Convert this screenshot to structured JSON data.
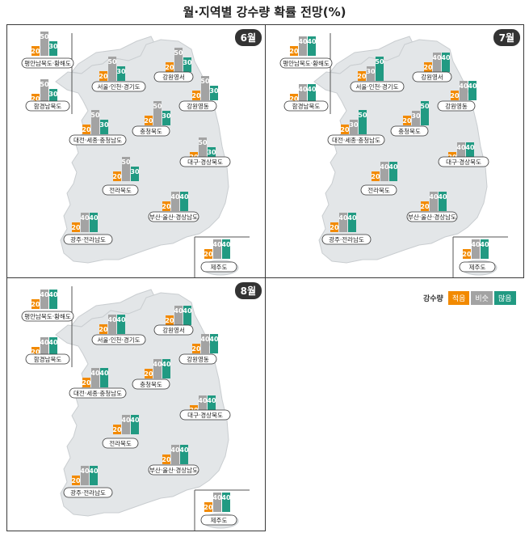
{
  "title": "월·지역별 강수량 확률 전망(%)",
  "colors": {
    "below": "#f28a00",
    "normal": "#a3a3a3",
    "above": "#219a82",
    "map": "#e3e6e8",
    "map_stroke": "#c9cdd0"
  },
  "legend": {
    "title": "강수량",
    "items": [
      "적음",
      "비슷",
      "많음"
    ]
  },
  "chart_data": [
    {
      "type": "bar",
      "month": "6월",
      "series": [
        "적음",
        "비슷",
        "많음"
      ],
      "regions": [
        {
          "name": "평안남북도·황해도",
          "values": [
            20,
            50,
            30
          ]
        },
        {
          "name": "함경남북도",
          "values": [
            20,
            50,
            30
          ]
        },
        {
          "name": "서울·인천·경기도",
          "values": [
            20,
            50,
            30
          ]
        },
        {
          "name": "강원영서",
          "values": [
            20,
            50,
            30
          ]
        },
        {
          "name": "강원영동",
          "values": [
            20,
            50,
            30
          ]
        },
        {
          "name": "대전·세종·충청남도",
          "values": [
            20,
            50,
            30
          ]
        },
        {
          "name": "충청북도",
          "values": [
            20,
            50,
            30
          ]
        },
        {
          "name": "대구·경상북도",
          "values": [
            20,
            50,
            30
          ]
        },
        {
          "name": "전라북도",
          "values": [
            20,
            50,
            30
          ]
        },
        {
          "name": "부산·울산·경상남도",
          "values": [
            20,
            40,
            40
          ]
        },
        {
          "name": "광주·전라남도",
          "values": [
            20,
            40,
            40
          ]
        },
        {
          "name": "제주도",
          "values": [
            20,
            40,
            40
          ]
        }
      ]
    },
    {
      "type": "bar",
      "month": "7월",
      "series": [
        "적음",
        "비슷",
        "많음"
      ],
      "regions": [
        {
          "name": "평안남북도·황해도",
          "values": [
            20,
            40,
            40
          ]
        },
        {
          "name": "함경남북도",
          "values": [
            20,
            40,
            40
          ]
        },
        {
          "name": "서울·인천·경기도",
          "values": [
            20,
            30,
            50
          ]
        },
        {
          "name": "강원영서",
          "values": [
            20,
            40,
            40
          ]
        },
        {
          "name": "강원영동",
          "values": [
            20,
            40,
            40
          ]
        },
        {
          "name": "대전·세종·충청남도",
          "values": [
            20,
            30,
            50
          ]
        },
        {
          "name": "충청북도",
          "values": [
            20,
            30,
            50
          ]
        },
        {
          "name": "대구·경상북도",
          "values": [
            20,
            40,
            40
          ]
        },
        {
          "name": "전라북도",
          "values": [
            20,
            40,
            40
          ]
        },
        {
          "name": "부산·울산·경상남도",
          "values": [
            20,
            40,
            40
          ]
        },
        {
          "name": "광주·전라남도",
          "values": [
            20,
            40,
            40
          ]
        },
        {
          "name": "제주도",
          "values": [
            20,
            40,
            40
          ]
        }
      ]
    },
    {
      "type": "bar",
      "month": "8월",
      "series": [
        "적음",
        "비슷",
        "많음"
      ],
      "regions": [
        {
          "name": "평안남북도·황해도",
          "values": [
            20,
            40,
            40
          ]
        },
        {
          "name": "함경남북도",
          "values": [
            20,
            40,
            40
          ]
        },
        {
          "name": "서울·인천·경기도",
          "values": [
            20,
            40,
            40
          ]
        },
        {
          "name": "강원영서",
          "values": [
            20,
            40,
            40
          ]
        },
        {
          "name": "강원영동",
          "values": [
            20,
            40,
            40
          ]
        },
        {
          "name": "대전·세종·충청남도",
          "values": [
            20,
            40,
            40
          ]
        },
        {
          "name": "충청북도",
          "values": [
            20,
            40,
            40
          ]
        },
        {
          "name": "대구·경상북도",
          "values": [
            20,
            40,
            40
          ]
        },
        {
          "name": "전라북도",
          "values": [
            20,
            40,
            40
          ]
        },
        {
          "name": "부산·울산·경상남도",
          "values": [
            20,
            40,
            40
          ]
        },
        {
          "name": "광주·전라남도",
          "values": [
            20,
            40,
            40
          ]
        },
        {
          "name": "제주도",
          "values": [
            20,
            40,
            40
          ]
        }
      ]
    }
  ]
}
